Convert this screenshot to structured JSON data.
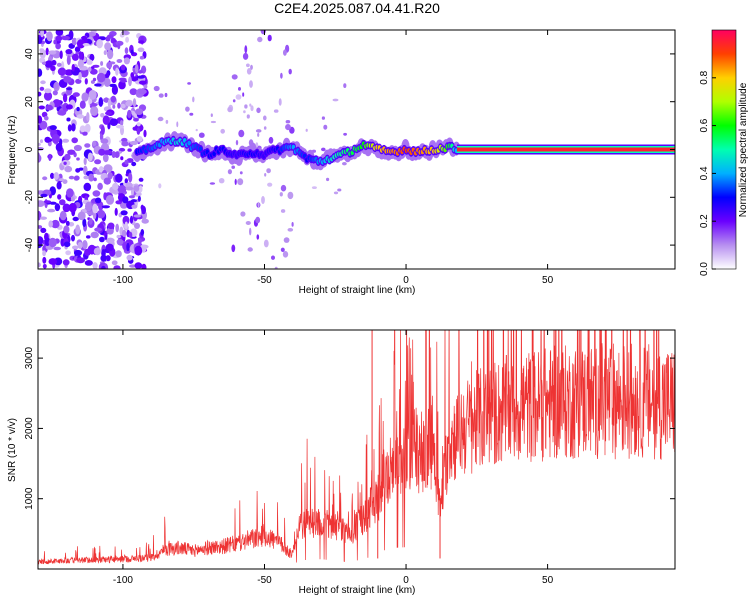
{
  "title": "C2E4.2025.087.04.41.R20",
  "chart_data": [
    {
      "type": "heatmap",
      "xlabel": "Height of straight line (km)",
      "ylabel": "Frequency (Hz)",
      "xlim": [
        -130,
        95
      ],
      "ylim": [
        -50,
        50
      ],
      "xticks": [
        -100,
        -50,
        0,
        50
      ],
      "yticks": [
        -40,
        -20,
        0,
        20,
        40
      ],
      "ridge": {
        "x": [
          -95,
          -90,
          -85,
          -80,
          -75,
          -70,
          -65,
          -60,
          -55,
          -50,
          -45,
          -40,
          -35,
          -30,
          -25,
          -20,
          -15,
          -10,
          -5,
          0,
          5,
          10,
          15,
          18
        ],
        "y": [
          -2,
          1,
          3,
          4,
          1,
          -2,
          0,
          -3,
          -1,
          -2,
          0,
          1,
          -4,
          -5,
          -3,
          -1,
          2,
          0,
          -1,
          0,
          -1,
          0,
          1,
          0
        ],
        "amplitude": [
          0.3,
          0.35,
          0.4,
          0.45,
          0.35,
          0.3,
          0.3,
          0.25,
          0.3,
          0.25,
          0.3,
          0.4,
          0.3,
          0.4,
          0.5,
          0.55,
          0.6,
          0.8,
          0.85,
          0.9,
          0.85,
          0.8,
          0.6,
          0.4
        ],
        "band": {
          "x_start": 18,
          "x_end": 95,
          "y": 0,
          "amplitude": 0.95
        }
      },
      "colorbar": {
        "label": "Normalized spectral amplitude",
        "range": [
          0,
          1
        ],
        "ticks": [
          "0.0",
          "0.2",
          "0.4",
          "0.6",
          "0.8"
        ]
      }
    },
    {
      "type": "line",
      "xlabel": "Height of straight line (km)",
      "ylabel": "SNR (10 * v/v)",
      "xlim": [
        -130,
        95
      ],
      "ylim": [
        0,
        3400
      ],
      "xticks": [
        -100,
        -50,
        0,
        50
      ],
      "yticks": [
        1000,
        2000,
        3000
      ],
      "color": "#ee3333",
      "x": [
        -130,
        -120,
        -110,
        -100,
        -90,
        -85,
        -80,
        -75,
        -70,
        -65,
        -60,
        -55,
        -50,
        -45,
        -40,
        -38,
        -35,
        -30,
        -25,
        -20,
        -15,
        -12,
        -10,
        -8,
        -5,
        0,
        5,
        10,
        12,
        15,
        20,
        25,
        30,
        35,
        40,
        50,
        60,
        70,
        80,
        90,
        95
      ],
      "y": [
        100,
        120,
        130,
        140,
        160,
        280,
        300,
        260,
        300,
        320,
        360,
        420,
        480,
        380,
        200,
        600,
        650,
        700,
        600,
        500,
        700,
        900,
        1000,
        1300,
        1500,
        1550,
        1650,
        1750,
        800,
        1800,
        2000,
        2100,
        2200,
        2250,
        2300,
        2350,
        2380,
        2400,
        2400,
        2380,
        2350
      ]
    }
  ]
}
